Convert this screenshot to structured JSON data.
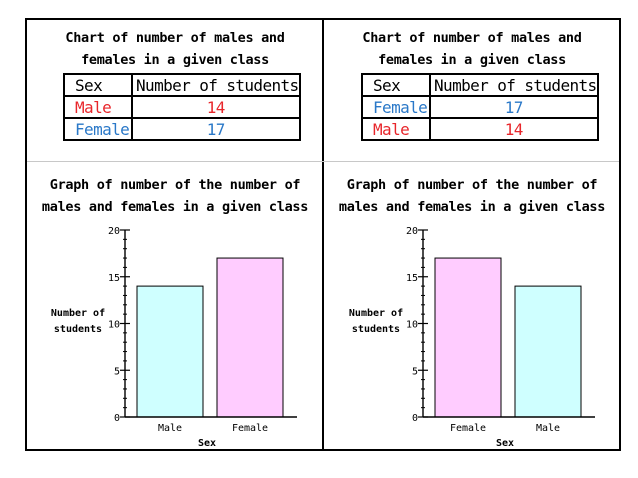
{
  "colors": {
    "male": "#e8262b",
    "female": "#2a78c8",
    "male_fill": "#cfffff",
    "female_fill": "#ffccff"
  },
  "panels": [
    {
      "chart_title": [
        "Chart of number of males and",
        "females in a given class"
      ],
      "table": {
        "headers": [
          "Sex",
          "Number of students"
        ],
        "rows": [
          {
            "sex": "Male",
            "count": "14",
            "color": "#e8262b"
          },
          {
            "sex": "Female",
            "count": "17",
            "color": "#2a78c8"
          }
        ]
      },
      "graph_title": [
        "Graph of number of the number of",
        "males and females in a given class"
      ]
    },
    {
      "chart_title": [
        "Chart of number of males and",
        "females in a given class"
      ],
      "table": {
        "headers": [
          "Sex",
          "Number of students"
        ],
        "rows": [
          {
            "sex": "Female",
            "count": "17",
            "color": "#2a78c8"
          },
          {
            "sex": "Male",
            "count": "14",
            "color": "#e8262b"
          }
        ]
      },
      "graph_title": [
        "Graph of number of the number of",
        "males and females in a given class"
      ]
    }
  ],
  "chart_data": [
    {
      "type": "bar",
      "categories": [
        "Male",
        "Female"
      ],
      "values": [
        14,
        17
      ],
      "fills": [
        "#cfffff",
        "#ffccff"
      ],
      "title": "Graph of number of the number of males and females in a given class",
      "xlabel": "Sex",
      "ylabel": [
        "Number of",
        "students"
      ],
      "ylim": [
        0,
        20
      ],
      "yticks": [
        0,
        5,
        10,
        15,
        20
      ],
      "minor_step": 1
    },
    {
      "type": "bar",
      "categories": [
        "Female",
        "Male"
      ],
      "values": [
        17,
        14
      ],
      "fills": [
        "#ffccff",
        "#cfffff"
      ],
      "title": "Graph of number of the number of males and females in a given class",
      "xlabel": "Sex",
      "ylabel": [
        "Number of",
        "students"
      ],
      "ylim": [
        0,
        20
      ],
      "yticks": [
        0,
        5,
        10,
        15,
        20
      ],
      "minor_step": 1
    }
  ]
}
